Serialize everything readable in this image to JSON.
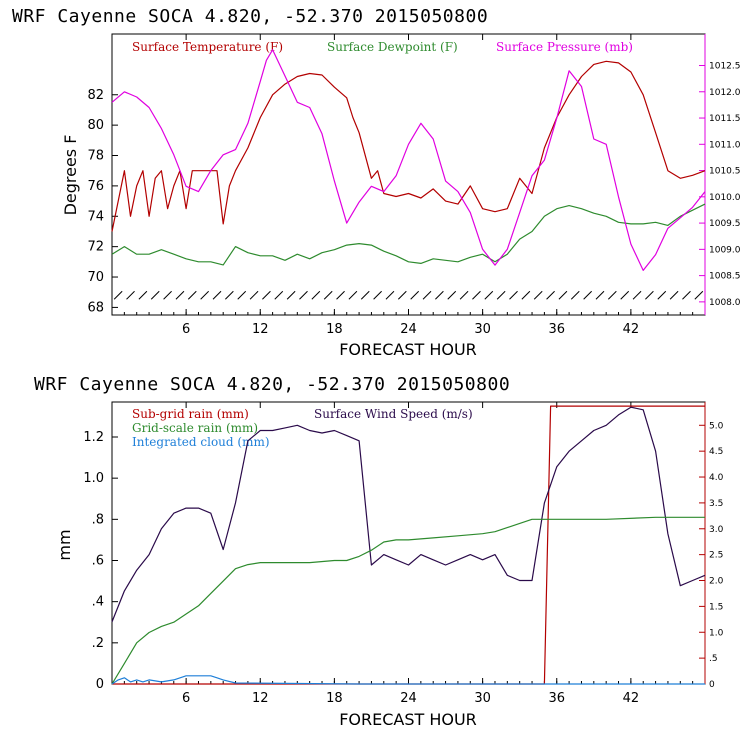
{
  "chart_data": [
    {
      "type": "line",
      "title": "WRF   Cayenne SOCA   4.820, -52.370  2015050800",
      "xlabel": "FORECAST HOUR",
      "ylabel": "Degrees F",
      "xlim": [
        0,
        48
      ],
      "ylim": [
        67.5,
        86
      ],
      "y2lim": [
        1007.75,
        1013.1
      ],
      "x_ticks": [
        6,
        12,
        18,
        24,
        30,
        36,
        42
      ],
      "y_ticks": [
        68,
        70,
        72,
        74,
        76,
        78,
        80,
        82
      ],
      "y2_ticks": [
        "1008.0",
        "1008.5",
        "1009.0",
        "1009.5",
        "1010.0",
        "1010.5",
        "1011.0",
        "1011.5",
        "1012.0",
        "1012.5"
      ],
      "series": [
        {
          "name": "Surface Temperature (F)",
          "color": "#b30000",
          "axis": "left",
          "x": [
            0,
            0.5,
            1,
            1.5,
            2,
            2.5,
            3,
            3.5,
            4,
            4.5,
            5,
            5.5,
            6,
            6.5,
            7,
            7.5,
            8,
            8.5,
            9,
            9.5,
            10,
            11,
            12,
            13,
            14,
            15,
            16,
            17,
            18,
            19,
            19.5,
            20,
            21,
            21.5,
            22,
            23,
            24,
            25,
            26,
            27,
            28,
            29,
            30,
            31,
            32,
            33,
            34,
            35,
            36,
            37,
            38,
            39,
            40,
            41,
            42,
            43,
            44,
            45,
            46,
            47,
            48
          ],
          "values": [
            73,
            75,
            77,
            74,
            76,
            77,
            74,
            76.5,
            77,
            74.5,
            76,
            77,
            74.5,
            77,
            77,
            77,
            77,
            77,
            73.5,
            76,
            77,
            78.5,
            80.5,
            82,
            82.7,
            83.2,
            83.4,
            83.3,
            82.5,
            81.8,
            80.5,
            79.5,
            76.5,
            77,
            75.5,
            75.3,
            75.5,
            75.2,
            75.8,
            75,
            74.8,
            76,
            74.5,
            74.3,
            74.5,
            76.5,
            75.5,
            78.5,
            80.5,
            82,
            83.2,
            84,
            84.2,
            84.1,
            83.5,
            82,
            79.5,
            77,
            76.5,
            76.7,
            77
          ]
        },
        {
          "name": "Surface Dewpoint (F)",
          "color": "#2e8b2e",
          "axis": "left",
          "x": [
            0,
            1,
            2,
            3,
            4,
            5,
            6,
            7,
            8,
            9,
            10,
            11,
            12,
            13,
            14,
            15,
            16,
            17,
            18,
            19,
            20,
            21,
            22,
            23,
            24,
            25,
            26,
            27,
            28,
            29,
            30,
            31,
            32,
            33,
            34,
            35,
            36,
            37,
            38,
            39,
            40,
            41,
            42,
            43,
            44,
            45,
            46,
            47,
            48
          ],
          "values": [
            71.5,
            72,
            71.5,
            71.5,
            71.8,
            71.5,
            71.2,
            71,
            71,
            70.8,
            72,
            71.6,
            71.4,
            71.4,
            71.1,
            71.5,
            71.2,
            71.6,
            71.8,
            72.1,
            72.2,
            72.1,
            71.7,
            71.4,
            71,
            70.9,
            71.2,
            71.1,
            71,
            71.3,
            71.5,
            71,
            71.5,
            72.5,
            73,
            74,
            74.5,
            74.7,
            74.5,
            74.2,
            74,
            73.6,
            73.5,
            73.5,
            73.6,
            73.4,
            74,
            74.4,
            74.8
          ]
        },
        {
          "name": "Surface Pressure (mb)",
          "color": "#e000e0",
          "axis": "right",
          "x": [
            0,
            1,
            2,
            3,
            4,
            5,
            6,
            7,
            8,
            9,
            10,
            11,
            12,
            12.5,
            13,
            14,
            15,
            16,
            17,
            18,
            19,
            20,
            21,
            22,
            23,
            24,
            25,
            26,
            27,
            28,
            29,
            30,
            31,
            32,
            33,
            34,
            35,
            36,
            37,
            38,
            39,
            40,
            41,
            42,
            43,
            44,
            45,
            46,
            47,
            48
          ],
          "values": [
            1011.8,
            1012.0,
            1011.9,
            1011.7,
            1011.3,
            1010.8,
            1010.2,
            1010.1,
            1010.5,
            1010.8,
            1010.9,
            1011.4,
            1012.2,
            1012.6,
            1012.8,
            1012.3,
            1011.8,
            1011.7,
            1011.2,
            1010.3,
            1009.5,
            1009.9,
            1010.2,
            1010.1,
            1010.4,
            1011.0,
            1011.4,
            1011.1,
            1010.3,
            1010.1,
            1009.7,
            1009.0,
            1008.7,
            1009.0,
            1009.7,
            1010.4,
            1010.7,
            1011.5,
            1012.4,
            1012.1,
            1011.1,
            1011.0,
            1010.0,
            1009.1,
            1008.6,
            1008.9,
            1009.4,
            1009.6,
            1009.8,
            1010.1
          ]
        }
      ],
      "wind_barbs_y": 68.8
    },
    {
      "type": "line",
      "title": "WRF   Cayenne SOCA   4.820, -52.370  2015050800",
      "xlabel": "FORECAST HOUR",
      "ylabel": "mm",
      "xlim": [
        0,
        48
      ],
      "ylim": [
        0,
        1.37
      ],
      "y2lim": [
        0,
        5.45
      ],
      "x_ticks": [
        6,
        12,
        18,
        24,
        30,
        36,
        42
      ],
      "y_ticks": [
        0,
        0.2,
        0.4,
        0.6,
        0.8,
        1.0,
        1.2
      ],
      "y_tick_labels": [
        "0",
        ".2",
        ".4",
        ".6",
        ".8",
        "1.0",
        "1.2"
      ],
      "y2_ticks": [
        "0",
        ".5",
        "1.0",
        "1.5",
        "2.0",
        "2.5",
        "3.0",
        "3.5",
        "4.0",
        "4.5",
        "5.0"
      ],
      "series": [
        {
          "name": "Sub-grid rain (mm)",
          "color": "#b30000",
          "axis": "left",
          "x": [
            0,
            35,
            35.5,
            48
          ],
          "values": [
            0,
            0,
            1.35,
            1.35
          ]
        },
        {
          "name": "Surface Wind Speed (m/s)",
          "color": "#2a0a4a",
          "axis": "right",
          "x": [
            0,
            1,
            2,
            3,
            4,
            5,
            6,
            7,
            8,
            9,
            10,
            11,
            12,
            13,
            14,
            15,
            16,
            17,
            18,
            19,
            20,
            21,
            22,
            23,
            24,
            25,
            26,
            27,
            28,
            29,
            30,
            31,
            32,
            33,
            34,
            35,
            36,
            37,
            38,
            39,
            40,
            41,
            42,
            43,
            44,
            45,
            46,
            47,
            48
          ],
          "values": [
            1.2,
            1.8,
            2.2,
            2.5,
            3.0,
            3.3,
            3.4,
            3.4,
            3.3,
            2.6,
            3.5,
            4.7,
            4.9,
            4.9,
            4.95,
            5.0,
            4.9,
            4.85,
            4.9,
            4.8,
            4.7,
            2.3,
            2.5,
            2.4,
            2.3,
            2.5,
            2.4,
            2.3,
            2.4,
            2.5,
            2.4,
            2.5,
            2.1,
            2.0,
            2.0,
            3.5,
            4.2,
            4.5,
            4.7,
            4.9,
            5.0,
            5.2,
            5.35,
            5.3,
            4.5,
            2.9,
            1.9,
            2.0,
            2.1
          ]
        },
        {
          "name": "Grid-scale rain (mm)",
          "color": "#2e8b2e",
          "axis": "left",
          "x": [
            0,
            1,
            2,
            3,
            4,
            5,
            6,
            7,
            8,
            9,
            10,
            11,
            12,
            14,
            16,
            18,
            19,
            20,
            21,
            22,
            23,
            24,
            26,
            28,
            30,
            31,
            32,
            33,
            34,
            36,
            40,
            44,
            48
          ],
          "values": [
            0,
            0.1,
            0.2,
            0.25,
            0.28,
            0.3,
            0.34,
            0.38,
            0.44,
            0.5,
            0.56,
            0.58,
            0.59,
            0.59,
            0.59,
            0.6,
            0.6,
            0.62,
            0.65,
            0.69,
            0.7,
            0.7,
            0.71,
            0.72,
            0.73,
            0.74,
            0.76,
            0.78,
            0.8,
            0.8,
            0.8,
            0.81,
            0.81
          ]
        },
        {
          "name": "Integrated cloud (mm)",
          "color": "#1e7fd8",
          "axis": "left",
          "x": [
            0,
            0.5,
            1,
            1.5,
            2,
            2.5,
            3,
            4,
            5,
            6,
            7,
            8,
            8.5,
            9,
            10,
            20,
            30,
            48
          ],
          "values": [
            0,
            0.02,
            0.03,
            0.01,
            0.02,
            0.01,
            0.02,
            0.01,
            0.02,
            0.04,
            0.04,
            0.04,
            0.03,
            0.02,
            0.005,
            0,
            0,
            0
          ]
        }
      ]
    }
  ]
}
